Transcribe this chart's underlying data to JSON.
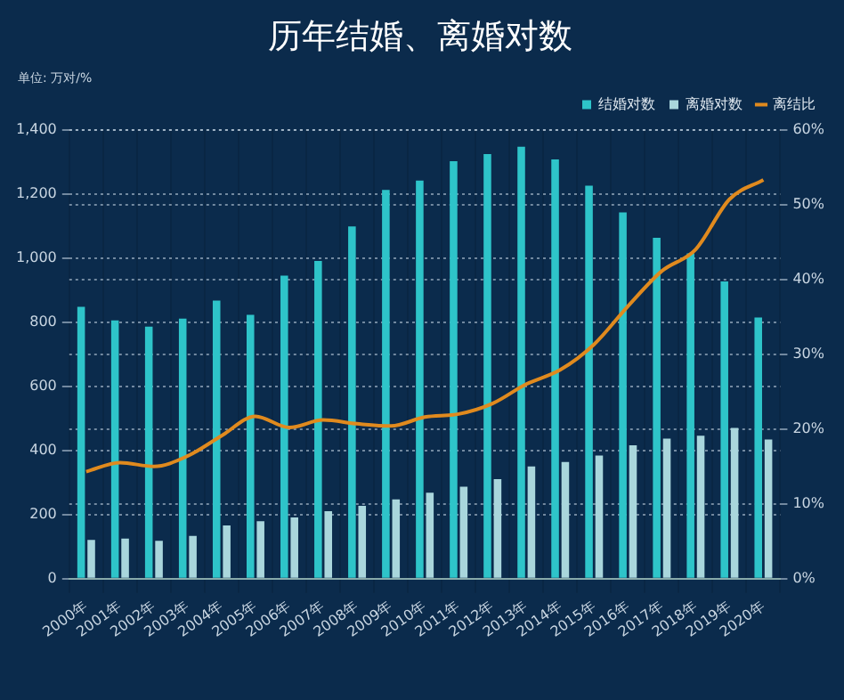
{
  "chart_data": {
    "type": "bar",
    "title": "历年结婚、离婚对数",
    "annotations": [
      "单位: 万对/%"
    ],
    "categories": [
      "2000年",
      "2001年",
      "2002年",
      "2003年",
      "2004年",
      "2005年",
      "2006年",
      "2007年",
      "2008年",
      "2009年",
      "2010年",
      "2011年",
      "2012年",
      "2013年",
      "2014年",
      "2015年",
      "2016年",
      "2017年",
      "2018年",
      "2019年",
      "2020年"
    ],
    "series": [
      {
        "name": "结婚对数",
        "color": "#2ec4c9",
        "values": [
          848,
          805,
          786,
          811,
          867,
          823,
          945,
          991,
          1098,
          1212,
          1241,
          1302,
          1324,
          1347,
          1307,
          1225,
          1142,
          1063,
          1014,
          927,
          814
        ]
      },
      {
        "name": "离婚对数",
        "color": "#a9d6dc",
        "values": [
          121,
          125,
          118,
          133,
          166,
          179,
          191,
          210,
          227,
          247,
          268,
          287,
          310,
          350,
          364,
          384,
          416,
          437,
          446,
          470,
          434
        ]
      },
      {
        "name": "离结比",
        "type": "line",
        "axis": "y2",
        "color": "#e08a1e",
        "marker": "none",
        "values": [
          14.3,
          15.5,
          15.0,
          16.4,
          19.1,
          21.7,
          20.2,
          21.2,
          20.7,
          20.4,
          21.6,
          22.0,
          23.4,
          26.0,
          27.9,
          31.3,
          36.4,
          41.1,
          44.0,
          50.7,
          53.3
        ]
      }
    ],
    "ylim": [
      0,
      1400
    ],
    "yticks": [
      {
        "value": 0,
        "label": "0"
      },
      {
        "value": 200,
        "label": "200"
      },
      {
        "value": 400,
        "label": "400"
      },
      {
        "value": 600,
        "label": "600"
      },
      {
        "value": 800,
        "label": "800"
      },
      {
        "value": 1000,
        "label": "1,000"
      },
      {
        "value": 1200,
        "label": "1,200"
      },
      {
        "value": 1400,
        "label": "1,400"
      }
    ],
    "y2lim": [
      0,
      60
    ],
    "y2ticks": [
      {
        "value": 0,
        "label": "0%"
      },
      {
        "value": 10,
        "label": "10%"
      },
      {
        "value": 20,
        "label": "20%"
      },
      {
        "value": 30,
        "label": "30%"
      },
      {
        "value": 40,
        "label": "40%"
      },
      {
        "value": 50,
        "label": "50%"
      },
      {
        "value": 60,
        "label": "60%"
      }
    ],
    "grid": true,
    "legend": "top right"
  }
}
